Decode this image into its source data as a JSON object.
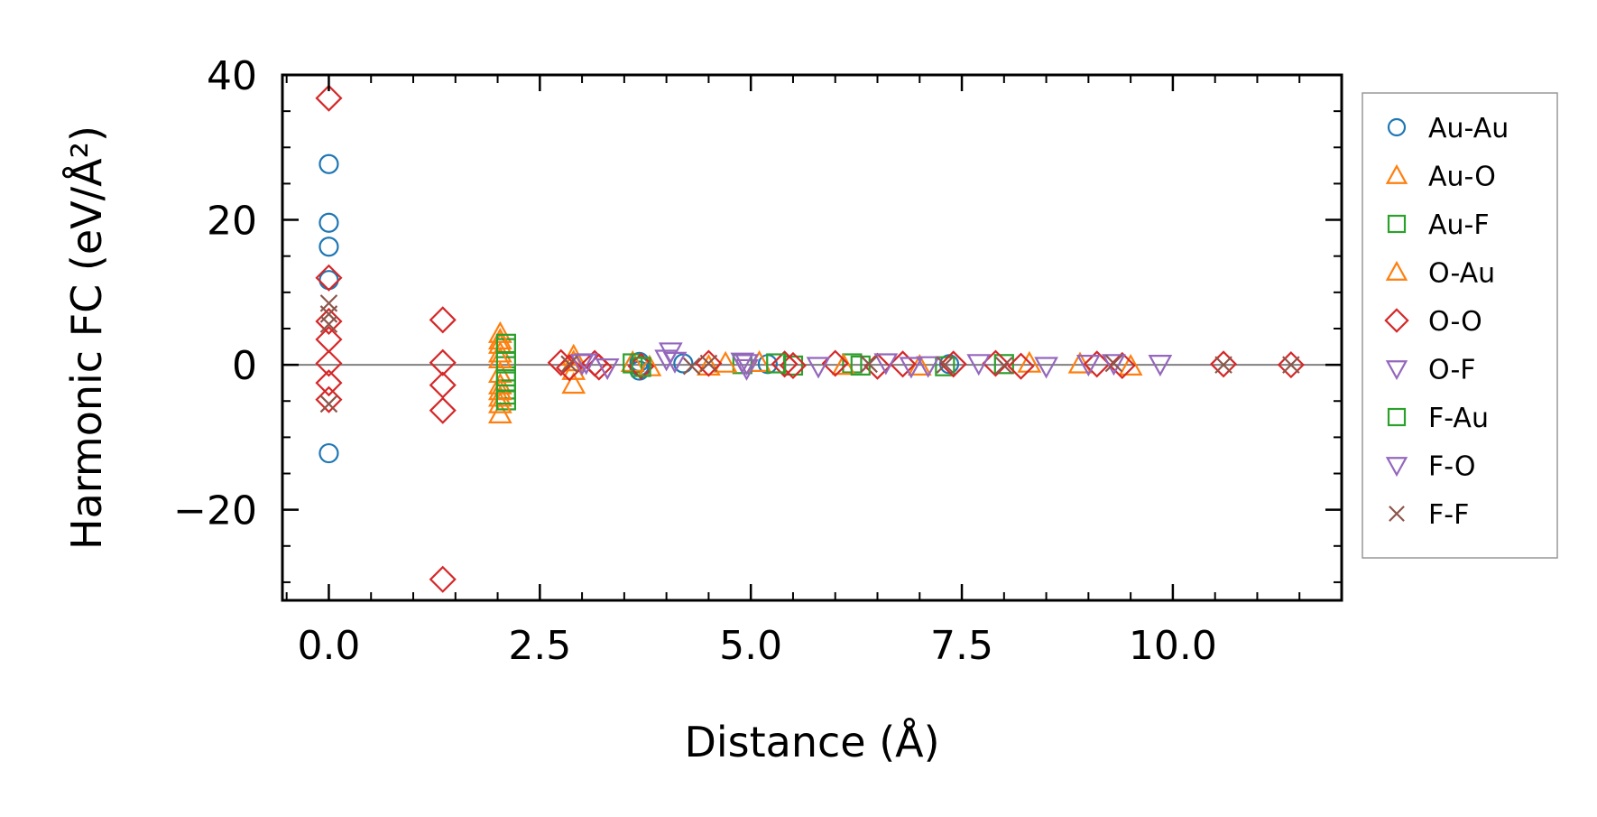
{
  "chart_data": {
    "type": "scatter",
    "title": "",
    "xlabel": "Distance (Å)",
    "ylabel": "Harmonic FC (eV/Å²)",
    "xlim": [
      -0.55,
      12.0
    ],
    "ylim": [
      -32.5,
      40
    ],
    "x_ticks": [
      {
        "value": 0,
        "label": "0.0"
      },
      {
        "value": 2.5,
        "label": "2.5"
      },
      {
        "value": 5,
        "label": "5.0"
      },
      {
        "value": 7.5,
        "label": "7.5"
      },
      {
        "value": 10,
        "label": "10.0"
      }
    ],
    "y_ticks": [
      {
        "value": -20,
        "label": "−20"
      },
      {
        "value": 0,
        "label": "0"
      },
      {
        "value": 20,
        "label": "20"
      },
      {
        "value": 40,
        "label": "40"
      }
    ],
    "zero_line": true,
    "grid": false,
    "legend_position": "right-outside",
    "series": [
      {
        "name": "Au-Au",
        "marker": "circle",
        "color": "#1f77b4",
        "points": [
          [
            0,
            27.7
          ],
          [
            0,
            19.6
          ],
          [
            0,
            16.3
          ],
          [
            0,
            11.7
          ],
          [
            0,
            -12.2
          ],
          [
            3.68,
            0.4
          ],
          [
            3.68,
            -0.8
          ],
          [
            3.68,
            -0.2
          ],
          [
            4.2,
            0.2
          ],
          [
            5.2,
            0.1
          ],
          [
            7.35,
            0.1
          ]
        ]
      },
      {
        "name": "Au-O",
        "marker": "triangle-up",
        "color": "#ff7f0e",
        "points": [
          [
            2.03,
            4.3
          ],
          [
            2.03,
            2.8
          ],
          [
            2.03,
            1.6
          ],
          [
            2.03,
            -1.2
          ],
          [
            2.03,
            -2.8
          ],
          [
            2.03,
            -4.5
          ],
          [
            2.03,
            -6.8
          ],
          [
            2.9,
            1.2
          ],
          [
            2.9,
            -2.7
          ],
          [
            2.9,
            -0.8
          ],
          [
            3.6,
            0.3
          ],
          [
            4.5,
            -0.2
          ],
          [
            5.1,
            0.3
          ],
          [
            7.0,
            -0.2
          ],
          [
            8.9,
            0.1
          ],
          [
            9.5,
            -0.2
          ]
        ]
      },
      {
        "name": "Au-F",
        "marker": "square",
        "color": "#2ca02c",
        "points": [
          [
            2.1,
            2.3
          ],
          [
            2.1,
            -1.6
          ],
          [
            2.1,
            -3.4
          ],
          [
            2.1,
            -4.9
          ],
          [
            3.6,
            0.2
          ],
          [
            4.9,
            0.1
          ],
          [
            5.5,
            -0.1
          ],
          [
            6.2,
            0.2
          ],
          [
            7.3,
            -0.2
          ],
          [
            8.0,
            0.1
          ]
        ]
      },
      {
        "name": "O-Au",
        "marker": "triangle-up",
        "color": "#ff7f0e",
        "points": [
          [
            2.03,
            3.4
          ],
          [
            2.03,
            0.8
          ],
          [
            2.03,
            -3.6
          ],
          [
            2.03,
            -5.4
          ],
          [
            2.9,
            0.4
          ],
          [
            3.8,
            -0.3
          ],
          [
            4.7,
            0.2
          ],
          [
            6.1,
            -0.1
          ],
          [
            8.3,
            0.2
          ]
        ]
      },
      {
        "name": "O-O",
        "marker": "diamond",
        "color": "#d62728",
        "points": [
          [
            0,
            36.8
          ],
          [
            0,
            12.0
          ],
          [
            0,
            6.0
          ],
          [
            0,
            3.5
          ],
          [
            0,
            0.2
          ],
          [
            0,
            -2.5
          ],
          [
            0,
            -4.8
          ],
          [
            1.35,
            6.2
          ],
          [
            1.35,
            0.3
          ],
          [
            1.35,
            -2.8
          ],
          [
            1.35,
            -6.3
          ],
          [
            1.35,
            -29.6
          ],
          [
            2.75,
            0.3
          ],
          [
            2.85,
            -0.4
          ],
          [
            3.15,
            0.2
          ],
          [
            3.2,
            -0.3
          ],
          [
            3.7,
            -0.2
          ],
          [
            4.5,
            0.2
          ],
          [
            5.4,
            0.1
          ],
          [
            5.5,
            -0.1
          ],
          [
            6.0,
            0.2
          ],
          [
            6.5,
            -0.2
          ],
          [
            6.8,
            0.1
          ],
          [
            7.4,
            0.1
          ],
          [
            7.9,
            0.2
          ],
          [
            8.2,
            -0.2
          ],
          [
            9.1,
            0.1
          ],
          [
            9.4,
            -0.1
          ],
          [
            10.6,
            0.1
          ],
          [
            11.4,
            0.0
          ]
        ]
      },
      {
        "name": "O-F",
        "marker": "triangle-down",
        "color": "#9467bd",
        "points": [
          [
            3.0,
            0.2
          ],
          [
            3.3,
            -0.4
          ],
          [
            4.05,
            1.8
          ],
          [
            4.1,
            0.5
          ],
          [
            4.9,
            0.4
          ],
          [
            4.95,
            -0.5
          ],
          [
            5.8,
            -0.2
          ],
          [
            6.6,
            0.3
          ],
          [
            7.1,
            -0.1
          ],
          [
            7.7,
            0.2
          ],
          [
            8.5,
            -0.2
          ],
          [
            9.0,
            0.1
          ],
          [
            9.85,
            0.1
          ]
        ]
      },
      {
        "name": "F-Au",
        "marker": "square",
        "color": "#2ca02c",
        "points": [
          [
            2.1,
            2.9
          ],
          [
            2.1,
            0.5
          ],
          [
            2.1,
            -2.3
          ],
          [
            2.1,
            -4.1
          ],
          [
            3.7,
            -0.3
          ],
          [
            5.3,
            0.2
          ],
          [
            6.3,
            -0.1
          ]
        ]
      },
      {
        "name": "F-O",
        "marker": "triangle-down",
        "color": "#9467bd",
        "points": [
          [
            3.05,
            0.3
          ],
          [
            4.0,
            0.8
          ],
          [
            4.95,
            0.2
          ],
          [
            6.9,
            -0.2
          ],
          [
            9.3,
            0.2
          ]
        ]
      },
      {
        "name": "F-F",
        "marker": "x",
        "color": "#8c564b",
        "points": [
          [
            0,
            8.5
          ],
          [
            0,
            7.0
          ],
          [
            0,
            5.6
          ],
          [
            0,
            -5.4
          ],
          [
            2.85,
            0.1
          ],
          [
            4.3,
            -0.2
          ],
          [
            4.5,
            0.2
          ],
          [
            6.4,
            0.1
          ],
          [
            7.3,
            0.0
          ],
          [
            8.0,
            -0.1
          ],
          [
            9.3,
            0.2
          ],
          [
            10.6,
            0.0
          ],
          [
            11.4,
            0.0
          ]
        ]
      }
    ]
  }
}
